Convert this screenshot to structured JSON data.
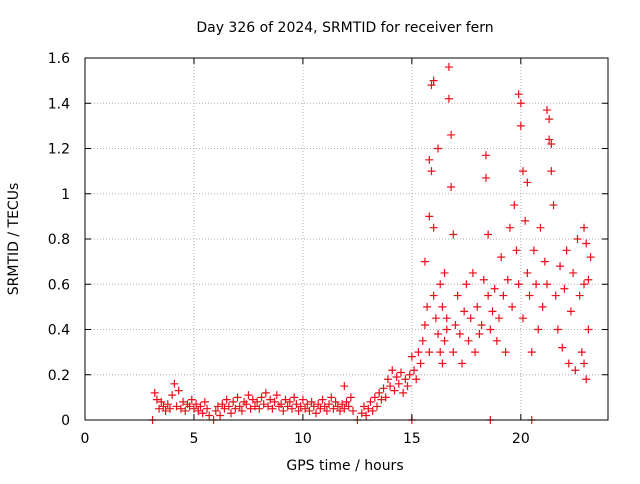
{
  "chart_data": {
    "type": "scatter",
    "title": "Day 326 of 2024, SRMTID for receiver fern",
    "xlabel": "GPS time / hours",
    "ylabel": "SRMTID / TECUs",
    "xlim": [
      0,
      24
    ],
    "ylim": [
      0,
      1.6
    ],
    "xticks": [
      0,
      5,
      10,
      15,
      20
    ],
    "xtick_labels": [
      "0",
      "5",
      "10",
      "15",
      "20"
    ],
    "yticks": [
      0,
      0.2,
      0.4,
      0.6,
      0.8,
      1.0,
      1.2,
      1.4,
      1.6
    ],
    "ytick_labels": [
      "0",
      "0.2",
      "0.4",
      "0.6",
      "0.8",
      "1",
      "1.2",
      "1.4",
      "1.6"
    ],
    "grid": true,
    "marker": "+",
    "colors": {
      "series": "#e8101a",
      "grid": "#b0b0b0",
      "axis": "#000000"
    },
    "series": [
      {
        "name": "SRMTID",
        "points": [
          [
            3.1,
            0.0
          ],
          [
            5.9,
            0.0
          ],
          [
            12.5,
            0.0
          ],
          [
            15.0,
            0.0
          ],
          [
            18.6,
            0.0
          ],
          [
            20.5,
            0.0
          ],
          [
            3.2,
            0.12
          ],
          [
            3.3,
            0.09
          ],
          [
            3.4,
            0.05
          ],
          [
            3.5,
            0.08
          ],
          [
            3.6,
            0.06
          ],
          [
            3.7,
            0.04
          ],
          [
            3.8,
            0.07
          ],
          [
            3.9,
            0.05
          ],
          [
            4.0,
            0.11
          ],
          [
            4.1,
            0.16
          ],
          [
            4.2,
            0.06
          ],
          [
            4.3,
            0.13
          ],
          [
            4.4,
            0.05
          ],
          [
            4.5,
            0.08
          ],
          [
            4.6,
            0.04
          ],
          [
            4.7,
            0.07
          ],
          [
            4.8,
            0.06
          ],
          [
            4.9,
            0.09
          ],
          [
            5.0,
            0.05
          ],
          [
            5.1,
            0.07
          ],
          [
            5.2,
            0.04
          ],
          [
            5.3,
            0.06
          ],
          [
            5.4,
            0.03
          ],
          [
            5.5,
            0.08
          ],
          [
            5.6,
            0.05
          ],
          [
            5.7,
            0.02
          ],
          [
            6.0,
            0.04
          ],
          [
            6.1,
            0.06
          ],
          [
            6.2,
            0.02
          ],
          [
            6.3,
            0.07
          ],
          [
            6.4,
            0.05
          ],
          [
            6.5,
            0.09
          ],
          [
            6.6,
            0.06
          ],
          [
            6.7,
            0.03
          ],
          [
            6.8,
            0.08
          ],
          [
            6.9,
            0.05
          ],
          [
            7.0,
            0.1
          ],
          [
            7.1,
            0.06
          ],
          [
            7.2,
            0.04
          ],
          [
            7.3,
            0.08
          ],
          [
            7.4,
            0.07
          ],
          [
            7.5,
            0.11
          ],
          [
            7.6,
            0.05
          ],
          [
            7.7,
            0.09
          ],
          [
            7.8,
            0.06
          ],
          [
            7.9,
            0.08
          ],
          [
            8.0,
            0.05
          ],
          [
            8.1,
            0.1
          ],
          [
            8.2,
            0.07
          ],
          [
            8.3,
            0.12
          ],
          [
            8.4,
            0.06
          ],
          [
            8.5,
            0.09
          ],
          [
            8.6,
            0.05
          ],
          [
            8.7,
            0.08
          ],
          [
            8.8,
            0.11
          ],
          [
            8.9,
            0.06
          ],
          [
            9.0,
            0.07
          ],
          [
            9.1,
            0.04
          ],
          [
            9.2,
            0.09
          ],
          [
            9.3,
            0.06
          ],
          [
            9.4,
            0.08
          ],
          [
            9.5,
            0.05
          ],
          [
            9.6,
            0.1
          ],
          [
            9.7,
            0.07
          ],
          [
            9.8,
            0.04
          ],
          [
            9.9,
            0.06
          ],
          [
            10.0,
            0.09
          ],
          [
            10.1,
            0.05
          ],
          [
            10.2,
            0.07
          ],
          [
            10.3,
            0.04
          ],
          [
            10.4,
            0.08
          ],
          [
            10.5,
            0.06
          ],
          [
            10.6,
            0.03
          ],
          [
            10.7,
            0.07
          ],
          [
            10.8,
            0.05
          ],
          [
            10.9,
            0.09
          ],
          [
            11.0,
            0.06
          ],
          [
            11.1,
            0.04
          ],
          [
            11.2,
            0.07
          ],
          [
            11.3,
            0.1
          ],
          [
            11.4,
            0.05
          ],
          [
            11.5,
            0.08
          ],
          [
            11.6,
            0.06
          ],
          [
            11.7,
            0.04
          ],
          [
            11.8,
            0.07
          ],
          [
            11.9,
            0.05
          ],
          [
            12.0,
            0.08
          ],
          [
            12.1,
            0.06
          ],
          [
            12.2,
            0.1
          ],
          [
            12.3,
            0.04
          ],
          [
            11.9,
            0.15
          ],
          [
            12.7,
            0.03
          ],
          [
            12.8,
            0.06
          ],
          [
            12.9,
            0.02
          ],
          [
            13.0,
            0.05
          ],
          [
            13.1,
            0.08
          ],
          [
            13.2,
            0.04
          ],
          [
            13.3,
            0.1
          ],
          [
            13.4,
            0.06
          ],
          [
            13.5,
            0.12
          ],
          [
            13.6,
            0.09
          ],
          [
            13.7,
            0.14
          ],
          [
            13.8,
            0.1
          ],
          [
            13.9,
            0.18
          ],
          [
            14.0,
            0.15
          ],
          [
            14.1,
            0.22
          ],
          [
            14.2,
            0.13
          ],
          [
            14.3,
            0.19
          ],
          [
            14.4,
            0.16
          ],
          [
            14.5,
            0.21
          ],
          [
            14.6,
            0.12
          ],
          [
            14.7,
            0.18
          ],
          [
            14.8,
            0.15
          ],
          [
            14.9,
            0.2
          ],
          [
            15.0,
            0.28
          ],
          [
            15.1,
            0.22
          ],
          [
            15.2,
            0.18
          ],
          [
            15.3,
            0.3
          ],
          [
            15.4,
            0.25
          ],
          [
            15.5,
            0.35
          ],
          [
            15.6,
            0.42
          ],
          [
            15.6,
            0.7
          ],
          [
            15.7,
            0.5
          ],
          [
            15.8,
            0.3
          ],
          [
            15.8,
            1.15
          ],
          [
            15.8,
            0.9
          ],
          [
            15.9,
            1.48
          ],
          [
            15.9,
            1.1
          ],
          [
            16.0,
            0.55
          ],
          [
            16.0,
            1.5
          ],
          [
            16.0,
            0.85
          ],
          [
            16.1,
            0.45
          ],
          [
            16.2,
            0.38
          ],
          [
            16.2,
            1.2
          ],
          [
            16.3,
            0.6
          ],
          [
            16.3,
            0.3
          ],
          [
            16.4,
            0.5
          ],
          [
            16.4,
            0.25
          ],
          [
            16.5,
            0.35
          ],
          [
            16.5,
            0.65
          ],
          [
            16.6,
            0.45
          ],
          [
            16.6,
            0.4
          ],
          [
            16.7,
            1.56
          ],
          [
            16.7,
            1.42
          ],
          [
            16.8,
            1.26
          ],
          [
            16.8,
            1.03
          ],
          [
            16.9,
            0.82
          ],
          [
            16.9,
            0.3
          ],
          [
            17.0,
            0.42
          ],
          [
            17.1,
            0.55
          ],
          [
            17.2,
            0.38
          ],
          [
            17.3,
            0.25
          ],
          [
            17.4,
            0.48
          ],
          [
            17.5,
            0.6
          ],
          [
            17.6,
            0.35
          ],
          [
            17.7,
            0.45
          ],
          [
            17.8,
            0.65
          ],
          [
            17.9,
            0.3
          ],
          [
            18.0,
            0.5
          ],
          [
            18.1,
            0.38
          ],
          [
            18.2,
            0.42
          ],
          [
            18.3,
            0.62
          ],
          [
            18.4,
            1.17
          ],
          [
            18.4,
            1.07
          ],
          [
            18.5,
            0.55
          ],
          [
            18.5,
            0.82
          ],
          [
            18.6,
            0.4
          ],
          [
            18.7,
            0.48
          ],
          [
            18.8,
            0.58
          ],
          [
            18.9,
            0.35
          ],
          [
            19.0,
            0.45
          ],
          [
            19.1,
            0.72
          ],
          [
            19.2,
            0.55
          ],
          [
            19.3,
            0.3
          ],
          [
            19.4,
            0.62
          ],
          [
            19.5,
            0.85
          ],
          [
            19.6,
            0.5
          ],
          [
            19.7,
            0.95
          ],
          [
            19.8,
            0.75
          ],
          [
            19.9,
            0.6
          ],
          [
            19.9,
            1.44
          ],
          [
            20.0,
            1.4
          ],
          [
            20.0,
            1.3
          ],
          [
            20.1,
            0.45
          ],
          [
            20.1,
            1.1
          ],
          [
            20.2,
            0.88
          ],
          [
            20.3,
            0.65
          ],
          [
            20.3,
            1.05
          ],
          [
            20.4,
            0.55
          ],
          [
            20.5,
            0.3
          ],
          [
            20.6,
            0.75
          ],
          [
            20.7,
            0.6
          ],
          [
            20.8,
            0.4
          ],
          [
            20.9,
            0.85
          ],
          [
            21.0,
            0.5
          ],
          [
            21.1,
            0.7
          ],
          [
            21.2,
            1.37
          ],
          [
            21.2,
            0.6
          ],
          [
            21.3,
            1.33
          ],
          [
            21.3,
            1.24
          ],
          [
            21.4,
            1.22
          ],
          [
            21.4,
            1.1
          ],
          [
            21.5,
            0.95
          ],
          [
            21.6,
            0.55
          ],
          [
            21.7,
            0.4
          ],
          [
            21.8,
            0.68
          ],
          [
            21.9,
            0.32
          ],
          [
            22.0,
            0.58
          ],
          [
            22.1,
            0.75
          ],
          [
            22.2,
            0.25
          ],
          [
            22.3,
            0.48
          ],
          [
            22.4,
            0.65
          ],
          [
            22.5,
            0.22
          ],
          [
            22.6,
            0.8
          ],
          [
            22.7,
            0.55
          ],
          [
            22.8,
            0.3
          ],
          [
            22.9,
            0.85
          ],
          [
            22.9,
            0.6
          ],
          [
            23.0,
            0.18
          ],
          [
            23.0,
            0.78
          ],
          [
            23.1,
            0.62
          ],
          [
            23.1,
            0.4
          ],
          [
            23.2,
            0.72
          ],
          [
            22.9,
            0.25
          ]
        ]
      }
    ]
  }
}
